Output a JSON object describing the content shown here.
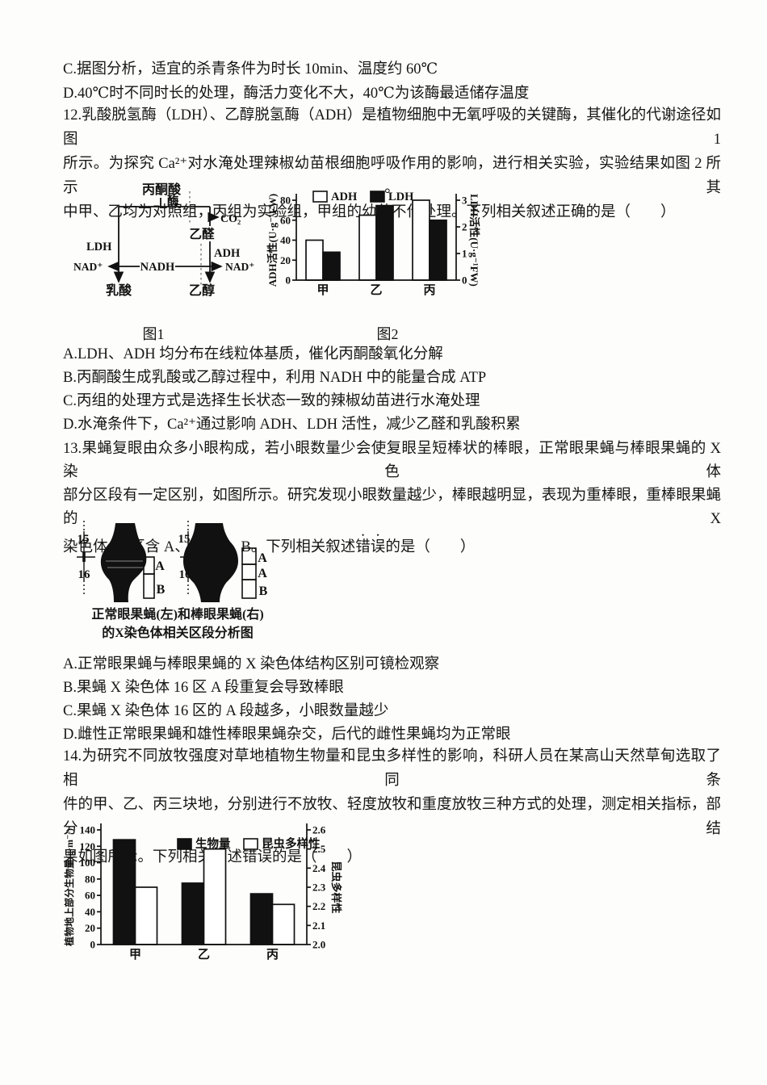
{
  "q11": {
    "option_c": "C.据图分析，适宜的杀青条件为时长 10min、温度约 60℃",
    "option_d": "D.40℃时不同时长的处理，酶活力变化不大，40℃为该酶最适储存温度"
  },
  "q12": {
    "lines": [
      "12.乳酸脱氢酶（LDH）、乙醇脱氢酶（ADH）是植物细胞中无氧呼吸的关键酶，其催化的代谢途径如图 1",
      "所示。为探究 Ca²⁺对水淹处理辣椒幼苗根细胞呼吸作用的影响，进行相关实验，实验结果如图 2 所示。其",
      "中甲、乙均为对照组，丙组为实验组，甲组的幼苗不作处理。下列相关叙述正确的是（　　）"
    ],
    "fig1": {
      "caption": "图1",
      "pyruvate": "丙酮酸",
      "enzyme": "酶",
      "co2": "CO₂",
      "acetaldehyde": "乙醛",
      "ethanol": "乙醇",
      "lactate": "乳酸",
      "ldh": "LDH",
      "adh": "ADH",
      "nadh": "NADH",
      "nad_left": "NAD⁺",
      "nad_right": "NAD⁺"
    },
    "fig2_caption": "图2",
    "options": [
      "A.LDH、ADH 均分布在线粒体基质，催化丙酮酸氧化分解",
      "B.丙酮酸生成乳酸或乙醇过程中，利用 NADH 中的能量合成 ATP",
      "C.丙组的处理方式是选择生长状态一致的辣椒幼苗进行水淹处理",
      "D.水淹条件下，Ca²⁺通过影响 ADH、LDH 活性，减少乙醛和乳酸积累"
    ]
  },
  "q13": {
    "lines": [
      "13.果蝇复眼由众多小眼构成，若小眼数量少会使复眼呈短棒状的棒眼，正常眼果蝇与棒眼果蝇的 X 染色体",
      "部分区段有一定区别，如图所示。研究发现小眼数量越少，棒眼越明显，表现为重棒眼，重棒眼果蝇的 X"
    ],
    "line3_pre": "染色体 16 区含 A、A、A、B。下列相关叙述",
    "line3_emph": "错误",
    "line3_post": "的是（　　）",
    "figure": {
      "left_top": "15",
      "left_bottom": "16",
      "right_top": "15",
      "right_bottom": "16",
      "left_seg_a": "A",
      "left_seg_b": "B",
      "right_seg_a1": "A",
      "right_seg_a2": "A",
      "right_seg_b": "B",
      "caption_line1": "正常眼果蝇(左)和棒眼果蝇(右)",
      "caption_line2": "的X染色体相关区段分析图"
    },
    "options": [
      "A.正常眼果蝇与棒眼果蝇的 X 染色体结构区别可镜检观察",
      "B.果蝇 X 染色体 16 区 A 段重复会导致棒眼",
      "C.果蝇 X 染色体 16 区的 A 段越多，小眼数量越少",
      "D.雌性正常眼果蝇和雄性棒眼果蝇杂交，后代的雌性果蝇均为正常眼"
    ]
  },
  "q14": {
    "lines": [
      "14.为研究不同放牧强度对草地植物生物量和昆虫多样性的影响，科研人员在某高山天然草甸选取了相同条",
      "件的甲、乙、丙三块地，分别进行不放牧、轻度放牧和重度放牧三种方式的处理，测定相关指标，部分结"
    ],
    "line3_pre": "果如图所示。下列相关叙述",
    "line3_emph": "错误",
    "line3_post": "的是（　　）"
  },
  "chart_data": [
    {
      "id": "fig2",
      "type": "bar",
      "title": "图2",
      "categories": [
        "甲",
        "乙",
        "丙"
      ],
      "series": [
        {
          "name": "ADH",
          "axis": "left",
          "fill": "white",
          "values": [
            40,
            65,
            80
          ]
        },
        {
          "name": "LDH",
          "axis": "right",
          "fill": "black",
          "values": [
            1.05,
            2.8,
            2.25
          ]
        }
      ],
      "left_axis": {
        "label": "ADH活性(U·g⁻¹FW)",
        "min": 0,
        "max": 80,
        "step": 20
      },
      "right_axis": {
        "label": "LDH活性(U·g⁻¹FW)",
        "min": 0,
        "max": 3,
        "step": 1
      },
      "legend_position": "top",
      "grid": false
    },
    {
      "id": "q14-chart",
      "type": "bar",
      "categories": [
        "甲",
        "乙",
        "丙"
      ],
      "series": [
        {
          "name": "生物量",
          "axis": "left",
          "fill": "black",
          "values": [
            128,
            75,
            62
          ]
        },
        {
          "name": "昆虫多样性",
          "axis": "right",
          "fill": "white",
          "values": [
            2.3,
            2.5,
            2.21
          ]
        }
      ],
      "left_axis": {
        "label": "植物地上部分生物量(g·m⁻²)",
        "min": 0,
        "max": 140,
        "step": 20
      },
      "right_axis": {
        "label": "昆虫多样性",
        "min": 2.0,
        "max": 2.6,
        "step": 0.1
      },
      "legend_position": "top",
      "grid": false
    }
  ]
}
